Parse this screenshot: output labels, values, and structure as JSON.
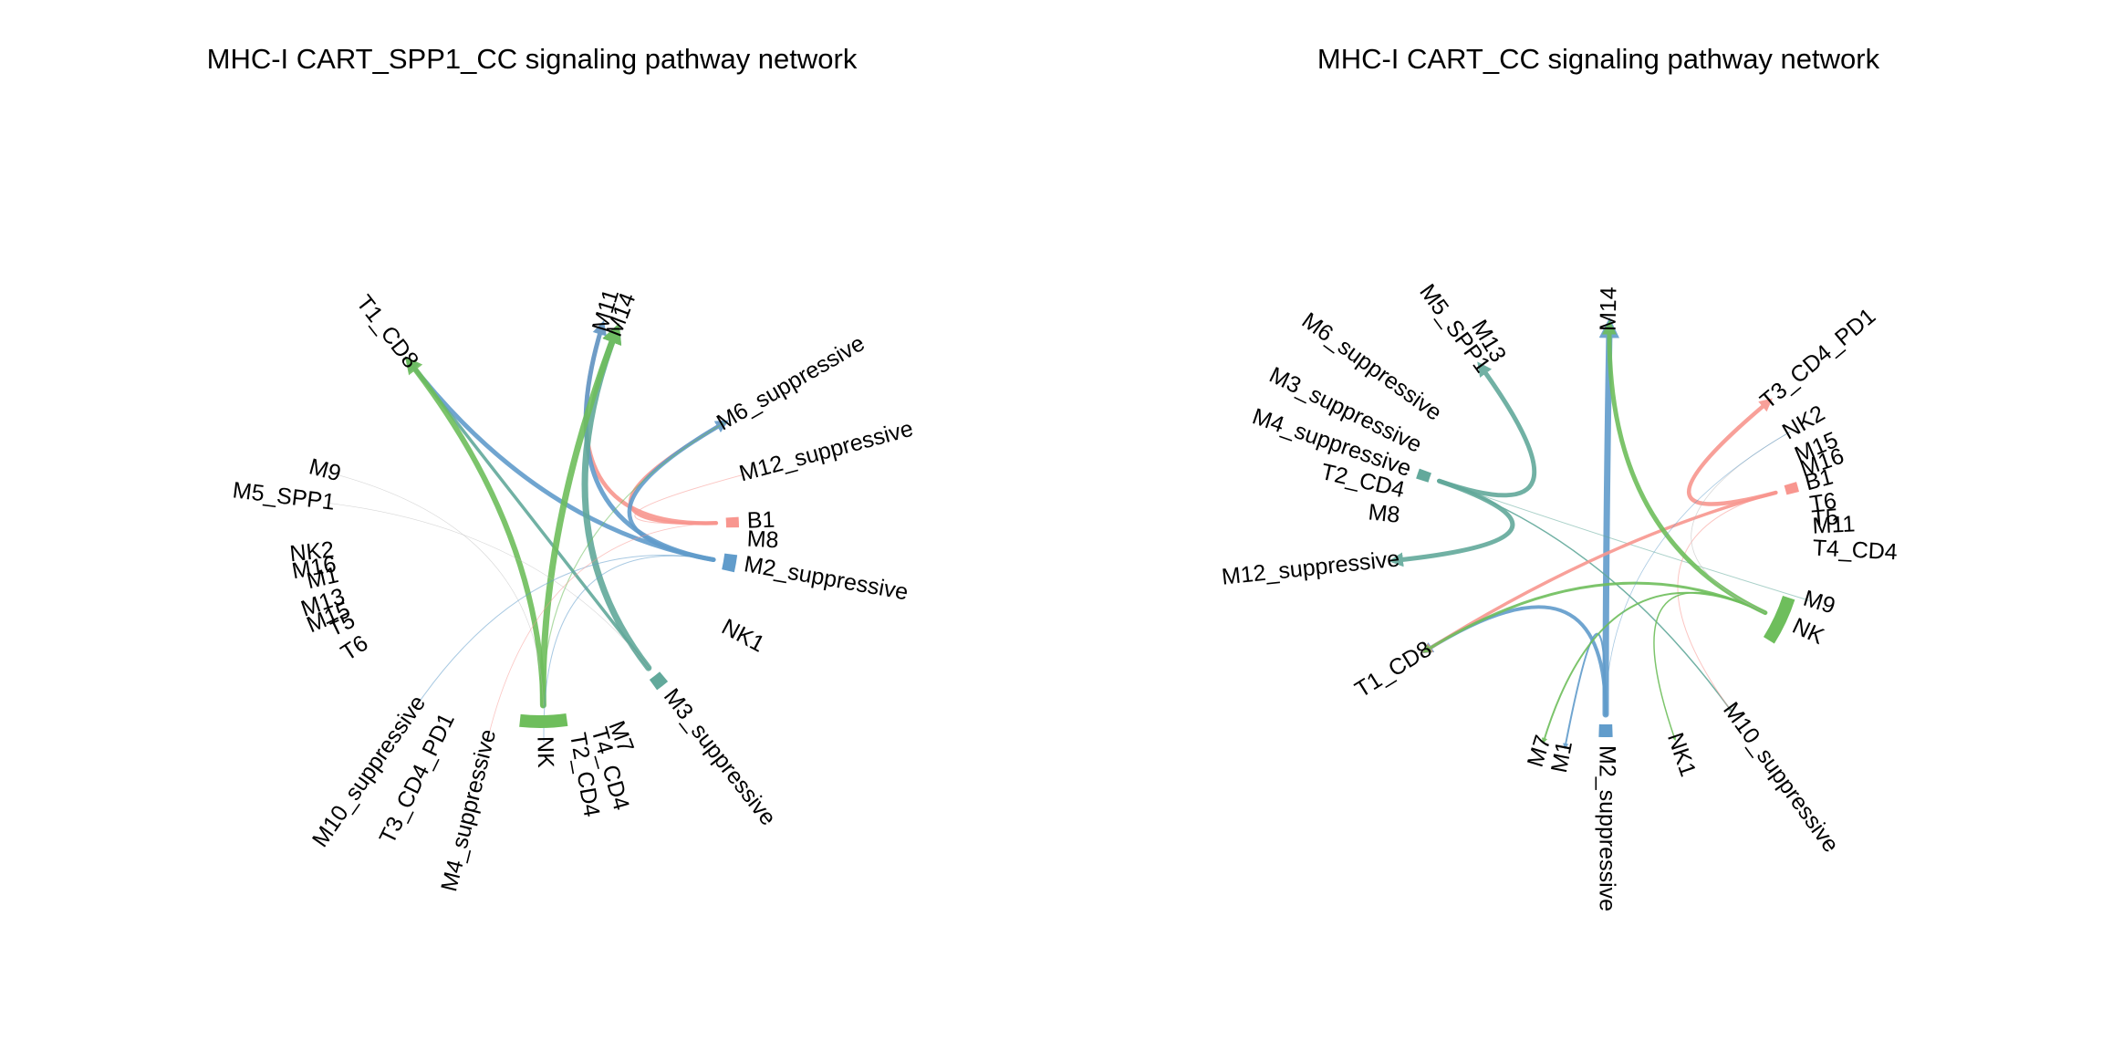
{
  "colors": {
    "red": "#F8968F",
    "blue": "#619CCB",
    "green": "#6EBE5C",
    "teal": "#62A99B",
    "faint": "#B7B7B7"
  },
  "panels": [
    {
      "id": "left",
      "title": "MHC-I CART_SPP1_CC signaling pathway network",
      "nodes": [
        {
          "label": "M11",
          "angle": 287,
          "r": 306,
          "color": null
        },
        {
          "label": "M14",
          "angle": 291,
          "r": 343,
          "color": null
        },
        {
          "label": "M6_suppressive",
          "angle": 330,
          "r": 283,
          "color": null
        },
        {
          "label": "M12_suppressive",
          "angle": 345,
          "r": 277,
          "color": null
        },
        {
          "label": "B1",
          "angle": 358,
          "r": 246,
          "color": "red",
          "arcSpan": 3
        },
        {
          "label": "M8",
          "angle": 3,
          "r": 262,
          "color": null
        },
        {
          "label": "M2_suppressive",
          "angle": 10,
          "r": 279,
          "color": "blue",
          "arcSpan": 5
        },
        {
          "label": "NK1",
          "angle": 28,
          "r": 255,
          "color": null
        },
        {
          "label": "M3_suppressive",
          "angle": 52,
          "r": 308,
          "color": "teal",
          "arcSpan": 4
        },
        {
          "label": "M7",
          "angle": 69,
          "r": 250,
          "color": null
        },
        {
          "label": "T4_CD4",
          "angle": 74,
          "r": 264,
          "color": null
        },
        {
          "label": "T2_CD4",
          "angle": 80,
          "r": 262,
          "color": null
        },
        {
          "label": "NK",
          "angle": 89,
          "r": 243,
          "color": "green",
          "arcSpan": 14
        },
        {
          "label": "M4_suppressive",
          "angle": 104,
          "r": 262,
          "color": null
        },
        {
          "label": "T3_CD4_PD1",
          "angle": 116,
          "r": 278,
          "color": null
        },
        {
          "label": "M10_suppressive",
          "angle": 125,
          "r": 297,
          "color": null
        },
        {
          "label": "T6",
          "angle": 147,
          "r": 242,
          "color": null
        },
        {
          "label": "T5",
          "angle": 154,
          "r": 231,
          "color": null
        },
        {
          "label": "M15",
          "angle": 157,
          "r": 253,
          "color": null
        },
        {
          "label": "M13",
          "angle": 161,
          "r": 251,
          "color": null
        },
        {
          "label": "M1",
          "angle": 167,
          "r": 240,
          "color": null
        },
        {
          "label": "M16",
          "angle": 170,
          "r": 260,
          "color": null
        },
        {
          "label": "NK2",
          "angle": 174,
          "r": 260,
          "color": null
        },
        {
          "label": "M5_SPP1",
          "angle": 187,
          "r": 342,
          "color": null
        },
        {
          "label": "M9",
          "angle": 195,
          "r": 302,
          "color": null
        },
        {
          "label": "T1_CD8",
          "angle": 232,
          "r": 345,
          "color": null
        }
      ],
      "links": [
        {
          "source": "B1",
          "target": "M11",
          "color": "red",
          "width": 4.5
        },
        {
          "source": "B1",
          "target": "M6_suppressive",
          "color": "red",
          "width": 3.5
        },
        {
          "source": "M2_suppressive",
          "target": "T1_CD8",
          "color": "blue",
          "width": 5
        },
        {
          "source": "M2_suppressive",
          "target": "M6_suppressive",
          "color": "blue",
          "width": 4.5
        },
        {
          "source": "M2_suppressive",
          "target": "M11",
          "color": "blue",
          "width": 5
        },
        {
          "source": "M3_suppressive",
          "target": "T1_CD8",
          "color": "teal",
          "width": 3.5
        },
        {
          "source": "M3_suppressive",
          "target": "M14",
          "color": "teal",
          "width": 7
        },
        {
          "source": "NK",
          "target": "T1_CD8",
          "color": "green",
          "width": 6
        },
        {
          "source": "NK",
          "target": "M14",
          "color": "green",
          "width": 7
        },
        {
          "source": "NK",
          "target": "M6_suppressive",
          "color": "green",
          "width": 1.2
        },
        {
          "source": "NK",
          "target": "M9",
          "color": "faint",
          "width": 0.6
        },
        {
          "source": "M2_suppressive",
          "target": "M10_suppressive",
          "color": "blue",
          "width": 1
        },
        {
          "source": "M3_suppressive",
          "target": "M5_SPP1",
          "color": "faint",
          "width": 0.6
        },
        {
          "source": "B1",
          "target": "M12_suppressive",
          "color": "red",
          "width": 1
        },
        {
          "source": "M2_suppressive",
          "target": "NK",
          "color": "blue",
          "width": 1
        },
        {
          "source": "B1",
          "target": "M4_suppressive",
          "color": "red",
          "width": 0.8
        }
      ]
    },
    {
      "id": "right",
      "title": "MHC-I CART_CC signaling pathway network",
      "nodes": [
        {
          "label": "M14",
          "angle": 271,
          "r": 315,
          "color": null
        },
        {
          "label": "T3_CD4_PD1",
          "angle": 320,
          "r": 336,
          "color": null
        },
        {
          "label": "NK2",
          "angle": 330,
          "r": 268,
          "color": null
        },
        {
          "label": "M15",
          "angle": 337,
          "r": 262,
          "color": null
        },
        {
          "label": "M16",
          "angle": 341,
          "r": 262,
          "color": null
        },
        {
          "label": "B1",
          "angle": 345,
          "r": 240,
          "color": "red",
          "arcSpan": 3
        },
        {
          "label": "T6",
          "angle": 351,
          "r": 248,
          "color": null
        },
        {
          "label": "T5",
          "angle": 355,
          "r": 246,
          "color": null
        },
        {
          "label": "M11",
          "angle": 357,
          "r": 260,
          "color": null
        },
        {
          "label": "T4_CD4",
          "angle": 3,
          "r": 290,
          "color": null
        },
        {
          "label": "M9",
          "angle": 17,
          "r": 244,
          "color": null
        },
        {
          "label": "NK",
          "angle": 25,
          "r": 240,
          "color": "green",
          "arcSpan": 14
        },
        {
          "label": "M10_suppressive",
          "angle": 54,
          "r": 325,
          "color": null
        },
        {
          "label": "NK1",
          "angle": 71,
          "r": 256,
          "color": null
        },
        {
          "label": "M2_suppressive",
          "angle": 90,
          "r": 334,
          "color": "blue",
          "arcSpan": 4
        },
        {
          "label": "M1",
          "angle": 101,
          "r": 242,
          "color": null
        },
        {
          "label": "M7",
          "angle": 107,
          "r": 249,
          "color": null
        },
        {
          "label": "T1_CD8",
          "angle": 148,
          "r": 292,
          "color": null
        },
        {
          "label": "M12_suppressive",
          "angle": 174,
          "r": 367,
          "color": null
        },
        {
          "label": "M8",
          "angle": 186,
          "r": 260,
          "color": null
        },
        {
          "label": "T2_CD4",
          "angle": 193,
          "r": 279,
          "color": null
        },
        {
          "label": "M4_suppressive",
          "angle": 199,
          "r": 335,
          "color": "teal",
          "arcSpan": 3
        },
        {
          "label": "M3_suppressive",
          "angle": 206,
          "r": 346,
          "color": null
        },
        {
          "label": "M6_suppressive",
          "angle": 216,
          "r": 348,
          "color": null
        },
        {
          "label": "M5_SPP1",
          "angle": 234,
          "r": 322,
          "color": null
        },
        {
          "label": "M13",
          "angle": 239,
          "r": 297,
          "color": null
        }
      ],
      "links": [
        {
          "source": "M2_suppressive",
          "target": "M14",
          "color": "blue",
          "width": 7
        },
        {
          "source": "M2_suppressive",
          "target": "T1_CD8",
          "color": "blue",
          "width": 4
        },
        {
          "source": "M2_suppressive",
          "target": "M1",
          "color": "blue",
          "width": 2
        },
        {
          "source": "M4_suppressive",
          "target": "M5_SPP1",
          "color": "teal",
          "width": 5
        },
        {
          "source": "M4_suppressive",
          "target": "M12_suppressive",
          "color": "teal",
          "width": 5
        },
        {
          "source": "M4_suppressive",
          "target": "M10_suppressive",
          "color": "teal",
          "width": 1.5
        },
        {
          "source": "M4_suppressive",
          "target": "M9",
          "color": "teal",
          "width": 1
        },
        {
          "source": "B1",
          "target": "T3_CD4_PD1",
          "color": "red",
          "width": 4.5
        },
        {
          "source": "B1",
          "target": "T1_CD8",
          "color": "red",
          "width": 3.5
        },
        {
          "source": "B1",
          "target": "M10_suppressive",
          "color": "red",
          "width": 1
        },
        {
          "source": "NK",
          "target": "M14",
          "color": "green",
          "width": 5
        },
        {
          "source": "NK",
          "target": "T1_CD8",
          "color": "green",
          "width": 3
        },
        {
          "source": "NK",
          "target": "M7",
          "color": "green",
          "width": 2
        },
        {
          "source": "NK",
          "target": "NK1",
          "color": "green",
          "width": 1.5
        },
        {
          "source": "NK",
          "target": "NK2",
          "color": "faint",
          "width": 0.8
        },
        {
          "source": "M2_suppressive",
          "target": "NK2",
          "color": "blue",
          "width": 0.8
        }
      ]
    }
  ]
}
